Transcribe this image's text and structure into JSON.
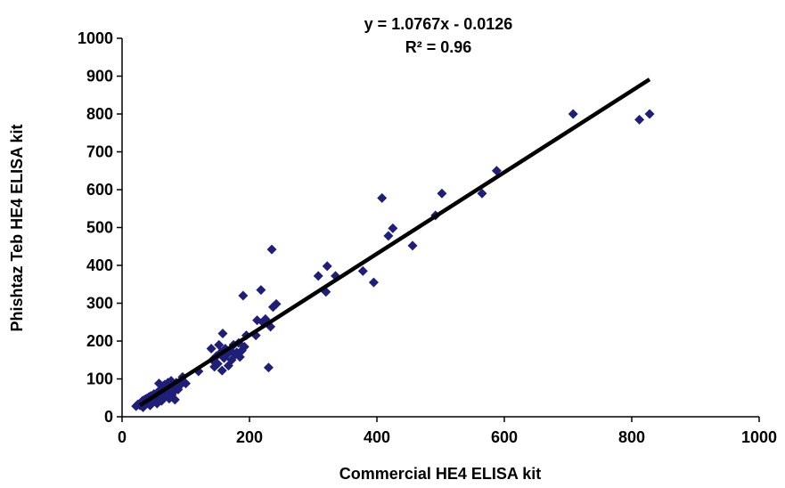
{
  "chart_data": {
    "type": "scatter",
    "xlabel": "Commercial HE4 ELISA kit",
    "ylabel": "Phishtaz Teb HE4 ELISA kit",
    "xlim": [
      0,
      1000
    ],
    "ylim": [
      0,
      1000
    ],
    "xticks": [
      "0",
      "200",
      "400",
      "600",
      "800",
      "1000"
    ],
    "yticks": [
      "0",
      "100",
      "200",
      "300",
      "400",
      "500",
      "600",
      "700",
      "800",
      "900",
      "1000"
    ],
    "grid": false,
    "marker_color": "#1f1f7a",
    "trendline": {
      "slope": 1.0767,
      "intercept": -0.0126,
      "x_range": [
        28,
        828
      ],
      "color": "#000000",
      "equation_label": "y = 1.0767x - 0.0126",
      "r2_label": "R² = 0.96"
    },
    "series": [
      {
        "points": [
          [
            22,
            28
          ],
          [
            25,
            33
          ],
          [
            28,
            30
          ],
          [
            30,
            38
          ],
          [
            32,
            42
          ],
          [
            33,
            25
          ],
          [
            35,
            45
          ],
          [
            36,
            35
          ],
          [
            38,
            48
          ],
          [
            40,
            40
          ],
          [
            42,
            52
          ],
          [
            44,
            30
          ],
          [
            45,
            55
          ],
          [
            46,
            45
          ],
          [
            48,
            38
          ],
          [
            50,
            60
          ],
          [
            52,
            50
          ],
          [
            53,
            42
          ],
          [
            55,
            35
          ],
          [
            56,
            65
          ],
          [
            57,
            48
          ],
          [
            58,
            88
          ],
          [
            60,
            70
          ],
          [
            61,
            55
          ],
          [
            62,
            42
          ],
          [
            63,
            80
          ],
          [
            64,
            60
          ],
          [
            65,
            72
          ],
          [
            66,
            50
          ],
          [
            67,
            85
          ],
          [
            68,
            62
          ],
          [
            70,
            75
          ],
          [
            71,
            55
          ],
          [
            72,
            90
          ],
          [
            73,
            65
          ],
          [
            74,
            48
          ],
          [
            75,
            78
          ],
          [
            77,
            95
          ],
          [
            78,
            58
          ],
          [
            80,
            82
          ],
          [
            82,
            68
          ],
          [
            83,
            45
          ],
          [
            85,
            90
          ],
          [
            88,
            72
          ],
          [
            92,
            85
          ],
          [
            95,
            105
          ],
          [
            100,
            88
          ],
          [
            120,
            120
          ],
          [
            140,
            180
          ],
          [
            142,
            150
          ],
          [
            145,
            132
          ],
          [
            148,
            160
          ],
          [
            150,
            140
          ],
          [
            152,
            190
          ],
          [
            155,
            170
          ],
          [
            157,
            122
          ],
          [
            158,
            220
          ],
          [
            160,
            155
          ],
          [
            162,
            180
          ],
          [
            165,
            165
          ],
          [
            167,
            135
          ],
          [
            170,
            175
          ],
          [
            172,
            150
          ],
          [
            175,
            190
          ],
          [
            178,
            165
          ],
          [
            180,
            170
          ],
          [
            183,
            195
          ],
          [
            185,
            158
          ],
          [
            188,
            175
          ],
          [
            190,
            320
          ],
          [
            192,
            185
          ],
          [
            195,
            215
          ],
          [
            210,
            215
          ],
          [
            212,
            255
          ],
          [
            218,
            335
          ],
          [
            222,
            248
          ],
          [
            225,
            258
          ],
          [
            230,
            130
          ],
          [
            233,
            238
          ],
          [
            235,
            442
          ],
          [
            237,
            290
          ],
          [
            242,
            298
          ],
          [
            308,
            372
          ],
          [
            320,
            330
          ],
          [
            322,
            398
          ],
          [
            335,
            372
          ],
          [
            378,
            385
          ],
          [
            395,
            355
          ],
          [
            408,
            578
          ],
          [
            418,
            478
          ],
          [
            425,
            498
          ],
          [
            456,
            452
          ],
          [
            492,
            532
          ],
          [
            502,
            590
          ],
          [
            565,
            590
          ],
          [
            588,
            650
          ],
          [
            708,
            800
          ],
          [
            812,
            785
          ],
          [
            828,
            800
          ]
        ]
      }
    ]
  }
}
